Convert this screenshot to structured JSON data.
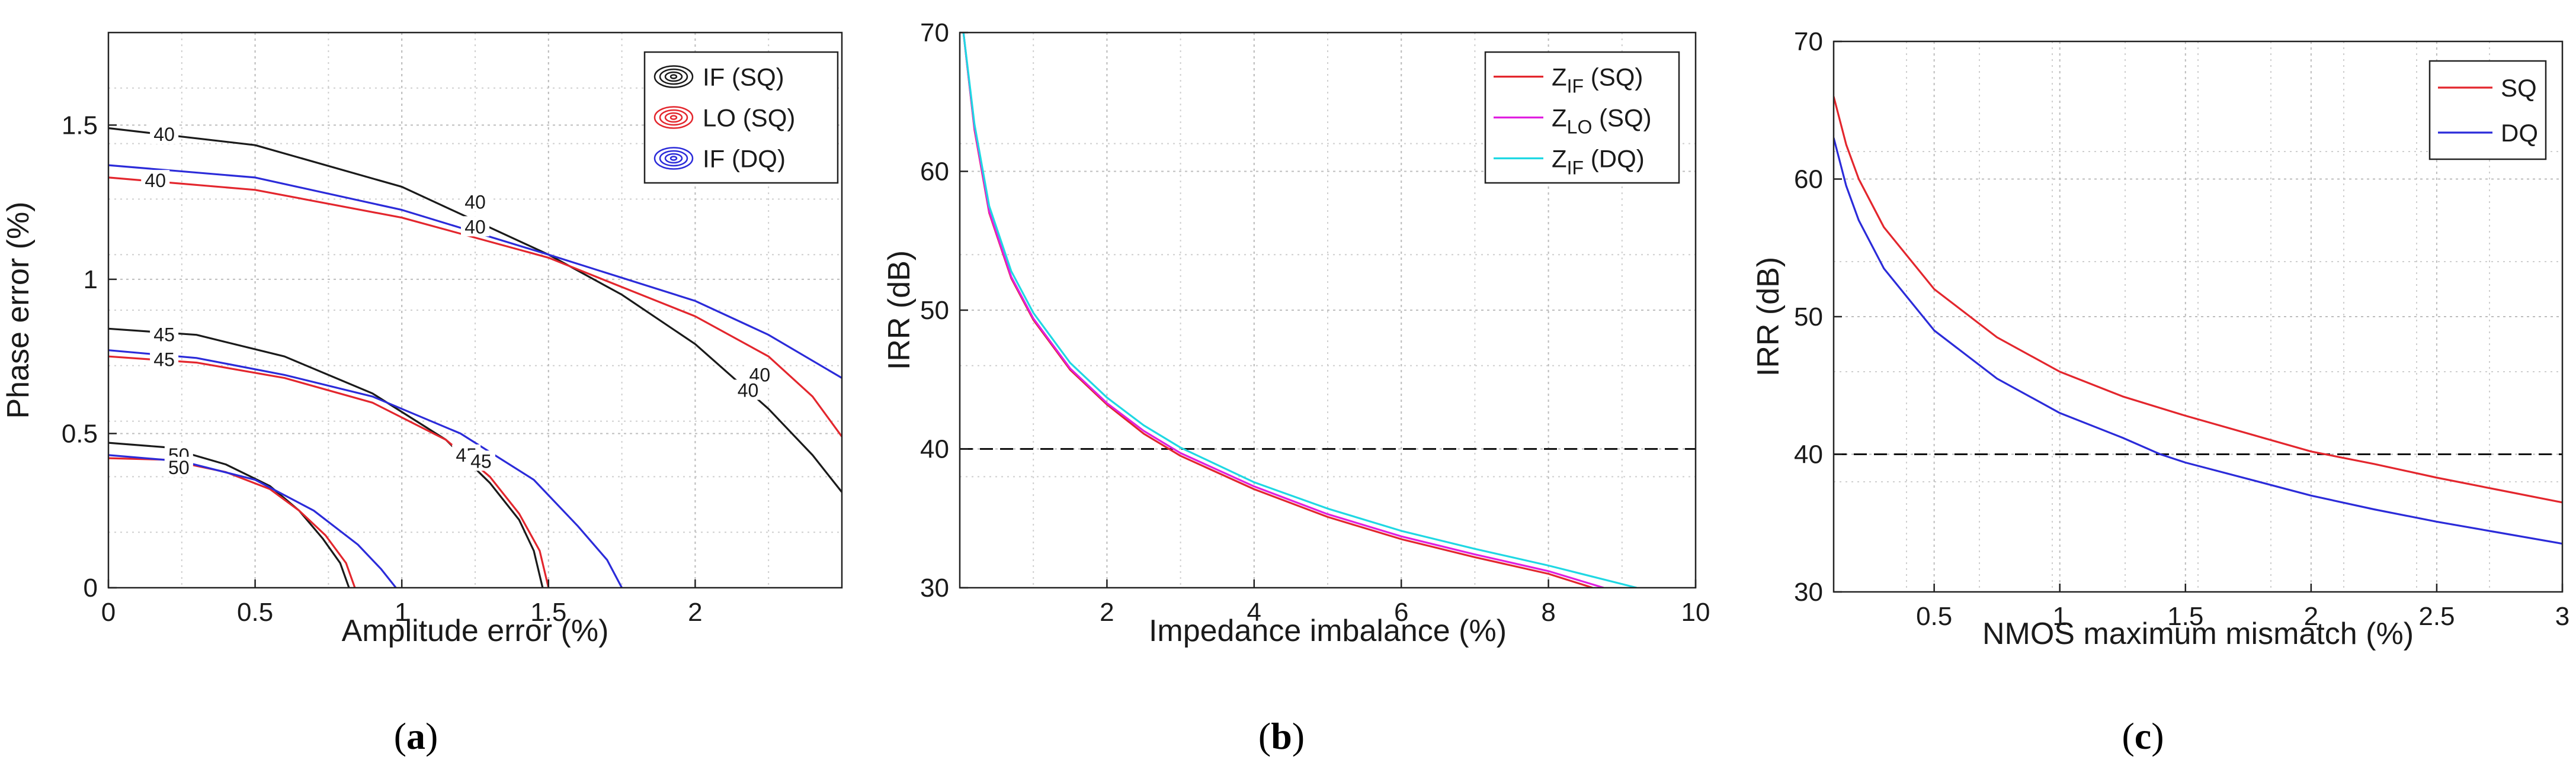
{
  "chart_data": [
    {
      "type": "contour",
      "panel_label": "a",
      "xlabel": "Amplitude error (%)",
      "ylabel": "Phase error (%)",
      "xlim": [
        0,
        2.5
      ],
      "ylim": [
        0,
        1.8
      ],
      "xticks": [
        0,
        0.5,
        1,
        1.5,
        2
      ],
      "xtick_labels": [
        "0",
        "0.5",
        "1",
        "1.5",
        "2"
      ],
      "yticks": [
        0,
        0.5,
        1,
        1.5
      ],
      "ytick_labels": [
        "0",
        "0.5",
        "1",
        "1.5"
      ],
      "legend": {
        "position": "top-right",
        "entries": [
          "IF (SQ)",
          "LO (SQ)",
          "IF (DQ)"
        ]
      },
      "contour_levels": [
        "40",
        "45",
        "50"
      ],
      "series": [
        {
          "name": "IF (SQ)",
          "color": "#1a1a1a",
          "contours": [
            {
              "level": "40",
              "points": [
                [
                  0,
                  1.49
                ],
                [
                  0.5,
                  1.435
                ],
                [
                  1,
                  1.3
                ],
                [
                  1.5,
                  1.08
                ],
                [
                  1.75,
                  0.95
                ],
                [
                  2,
                  0.79
                ],
                [
                  2.25,
                  0.58
                ],
                [
                  2.4,
                  0.43
                ],
                [
                  2.5,
                  0.31
                ]
              ]
            },
            {
              "level": "45",
              "points": [
                [
                  0,
                  0.84
                ],
                [
                  0.3,
                  0.82
                ],
                [
                  0.6,
                  0.75
                ],
                [
                  0.9,
                  0.63
                ],
                [
                  1.15,
                  0.48
                ],
                [
                  1.3,
                  0.34
                ],
                [
                  1.4,
                  0.22
                ],
                [
                  1.45,
                  0.12
                ],
                [
                  1.48,
                  0
                ]
              ]
            },
            {
              "level": "50",
              "points": [
                [
                  0,
                  0.47
                ],
                [
                  0.2,
                  0.455
                ],
                [
                  0.4,
                  0.4
                ],
                [
                  0.55,
                  0.33
                ],
                [
                  0.65,
                  0.25
                ],
                [
                  0.73,
                  0.16
                ],
                [
                  0.79,
                  0.08
                ],
                [
                  0.82,
                  0
                ]
              ]
            }
          ]
        },
        {
          "name": "LO (SQ)",
          "color": "#e3262d",
          "contours": [
            {
              "level": "40",
              "points": [
                [
                  0,
                  1.33
                ],
                [
                  0.5,
                  1.29
                ],
                [
                  1,
                  1.2
                ],
                [
                  1.5,
                  1.07
                ],
                [
                  2,
                  0.88
                ],
                [
                  2.25,
                  0.75
                ],
                [
                  2.4,
                  0.62
                ],
                [
                  2.5,
                  0.49
                ]
              ]
            },
            {
              "level": "45",
              "points": [
                [
                  0,
                  0.75
                ],
                [
                  0.3,
                  0.73
                ],
                [
                  0.6,
                  0.68
                ],
                [
                  0.9,
                  0.6
                ],
                [
                  1.15,
                  0.48
                ],
                [
                  1.3,
                  0.36
                ],
                [
                  1.4,
                  0.24
                ],
                [
                  1.47,
                  0.12
                ],
                [
                  1.5,
                  0
                ]
              ]
            },
            {
              "level": "50",
              "points": [
                [
                  0,
                  0.42
                ],
                [
                  0.2,
                  0.415
                ],
                [
                  0.4,
                  0.375
                ],
                [
                  0.55,
                  0.32
                ],
                [
                  0.65,
                  0.25
                ],
                [
                  0.74,
                  0.17
                ],
                [
                  0.81,
                  0.08
                ],
                [
                  0.84,
                  0
                ]
              ]
            }
          ]
        },
        {
          "name": "IF (DQ)",
          "color": "#2b2bd9",
          "contours": [
            {
              "level": "40",
              "points": [
                [
                  0,
                  1.37
                ],
                [
                  0.5,
                  1.33
                ],
                [
                  1,
                  1.225
                ],
                [
                  1.5,
                  1.08
                ],
                [
                  2,
                  0.93
                ],
                [
                  2.25,
                  0.82
                ],
                [
                  2.5,
                  0.68
                ]
              ]
            },
            {
              "level": "45",
              "points": [
                [
                  0,
                  0.77
                ],
                [
                  0.3,
                  0.745
                ],
                [
                  0.6,
                  0.69
                ],
                [
                  0.9,
                  0.62
                ],
                [
                  1.2,
                  0.5
                ],
                [
                  1.45,
                  0.35
                ],
                [
                  1.6,
                  0.2
                ],
                [
                  1.7,
                  0.09
                ],
                [
                  1.75,
                  0
                ]
              ]
            },
            {
              "level": "50",
              "points": [
                [
                  0,
                  0.43
                ],
                [
                  0.25,
                  0.41
                ],
                [
                  0.5,
                  0.35
                ],
                [
                  0.7,
                  0.25
                ],
                [
                  0.85,
                  0.14
                ],
                [
                  0.93,
                  0.06
                ],
                [
                  0.98,
                  0
                ]
              ]
            }
          ]
        }
      ],
      "contour_labels": [
        {
          "text": "40",
          "x": 0.19,
          "y": 1.47,
          "series": "IF (SQ)"
        },
        {
          "text": "40",
          "x": 0.16,
          "y": 1.32,
          "series": "LO (SQ)"
        },
        {
          "text": "40",
          "x": 1.25,
          "y": 1.25,
          "series": "IF (SQ)"
        },
        {
          "text": "40",
          "x": 1.25,
          "y": 1.17,
          "series": "IF (DQ)"
        },
        {
          "text": "40",
          "x": 2.22,
          "y": 0.69,
          "series": "LO (SQ)"
        },
        {
          "text": "40",
          "x": 2.18,
          "y": 0.64,
          "series": "IF (SQ)"
        },
        {
          "text": "45",
          "x": 0.19,
          "y": 0.82,
          "series": "IF (SQ)"
        },
        {
          "text": "45",
          "x": 0.19,
          "y": 0.74,
          "series": "IF (DQ)"
        },
        {
          "text": "45",
          "x": 1.22,
          "y": 0.43,
          "series": "IF (SQ)"
        },
        {
          "text": "45",
          "x": 1.27,
          "y": 0.41,
          "series": "IF (DQ)"
        },
        {
          "text": "50",
          "x": 0.24,
          "y": 0.43,
          "series": "IF (SQ)"
        },
        {
          "text": "50",
          "x": 0.24,
          "y": 0.39,
          "series": "IF (DQ)"
        }
      ]
    },
    {
      "type": "line",
      "panel_label": "b",
      "xlabel": "Impedance imbalance (%)",
      "ylabel": "IRR (dB)",
      "xlim": [
        0,
        10
      ],
      "ylim": [
        30,
        70
      ],
      "xticks": [
        2,
        4,
        6,
        8,
        10
      ],
      "xtick_labels": [
        "2",
        "4",
        "6",
        "8",
        "10"
      ],
      "yticks": [
        30,
        40,
        50,
        60,
        70
      ],
      "ytick_labels": [
        "30",
        "40",
        "50",
        "60",
        "70"
      ],
      "reference_line": {
        "y": 40,
        "style": "dashed"
      },
      "legend": {
        "position": "top-right"
      },
      "series": [
        {
          "name": "Z_IF (SQ)",
          "legend_main": "Z",
          "legend_sub": "IF",
          "legend_suffix": " (SQ)",
          "color": "#e3262d",
          "points": [
            [
              0.05,
              70
            ],
            [
              0.2,
              63
            ],
            [
              0.4,
              57
            ],
            [
              0.7,
              52.3
            ],
            [
              1,
              49.3
            ],
            [
              1.5,
              45.7
            ],
            [
              2,
              43.2
            ],
            [
              2.5,
              41.1
            ],
            [
              3,
              39.5
            ],
            [
              4,
              37.1
            ],
            [
              5,
              35.1
            ],
            [
              6,
              33.5
            ],
            [
              7,
              32.2
            ],
            [
              8,
              31
            ],
            [
              8.6,
              30
            ]
          ]
        },
        {
          "name": "Z_LO (SQ)",
          "legend_main": "Z",
          "legend_sub": "LO",
          "legend_suffix": " (SQ)",
          "color": "#e01fe0",
          "points": [
            [
              0.05,
              70
            ],
            [
              0.2,
              63.1
            ],
            [
              0.4,
              57.1
            ],
            [
              0.7,
              52.4
            ],
            [
              1,
              49.4
            ],
            [
              1.5,
              45.8
            ],
            [
              2,
              43.3
            ],
            [
              2.5,
              41.3
            ],
            [
              3,
              39.7
            ],
            [
              4,
              37.3
            ],
            [
              5,
              35.3
            ],
            [
              6,
              33.7
            ],
            [
              7,
              32.4
            ],
            [
              8,
              31.2
            ],
            [
              8.75,
              30
            ]
          ]
        },
        {
          "name": "Z_IF (DQ)",
          "legend_main": "Z",
          "legend_sub": "IF",
          "legend_suffix": " (DQ)",
          "color": "#1fd8e3",
          "points": [
            [
              0.05,
              70
            ],
            [
              0.2,
              63.4
            ],
            [
              0.4,
              57.5
            ],
            [
              0.7,
              52.8
            ],
            [
              1,
              49.8
            ],
            [
              1.5,
              46.2
            ],
            [
              2,
              43.7
            ],
            [
              2.5,
              41.7
            ],
            [
              3,
              40.1
            ],
            [
              4,
              37.6
            ],
            [
              5,
              35.7
            ],
            [
              6,
              34.1
            ],
            [
              7,
              32.8
            ],
            [
              8,
              31.6
            ],
            [
              9.2,
              30
            ]
          ]
        }
      ]
    },
    {
      "type": "line",
      "panel_label": "c",
      "xlabel": "NMOS maximum mismatch (%)",
      "ylabel": "IRR (dB)",
      "xlim": [
        0.1,
        3
      ],
      "ylim": [
        30,
        70
      ],
      "xticks": [
        0.5,
        1,
        1.5,
        2,
        2.5,
        3
      ],
      "xtick_labels": [
        "0.5",
        "1",
        "1.5",
        "2",
        "2.5",
        "3"
      ],
      "yticks": [
        30,
        40,
        50,
        60,
        70
      ],
      "ytick_labels": [
        "30",
        "40",
        "50",
        "60",
        "70"
      ],
      "reference_line": {
        "y": 40,
        "style": "dashed"
      },
      "legend": {
        "position": "top-right",
        "entries": [
          "SQ",
          "DQ"
        ]
      },
      "series": [
        {
          "name": "SQ",
          "color": "#e3262d",
          "points": [
            [
              0.1,
              66
            ],
            [
              0.15,
              62.5
            ],
            [
              0.2,
              60
            ],
            [
              0.3,
              56.5
            ],
            [
              0.5,
              52
            ],
            [
              0.75,
              48.5
            ],
            [
              1,
              46
            ],
            [
              1.25,
              44.2
            ],
            [
              1.5,
              42.8
            ],
            [
              1.75,
              41.5
            ],
            [
              2,
              40.2
            ],
            [
              2.25,
              39.3
            ],
            [
              2.5,
              38.3
            ],
            [
              2.75,
              37.4
            ],
            [
              3,
              36.5
            ]
          ]
        },
        {
          "name": "DQ",
          "color": "#2b2bd9",
          "points": [
            [
              0.1,
              63
            ],
            [
              0.15,
              59.5
            ],
            [
              0.2,
              57
            ],
            [
              0.3,
              53.5
            ],
            [
              0.5,
              49
            ],
            [
              0.75,
              45.5
            ],
            [
              1,
              43
            ],
            [
              1.25,
              41.2
            ],
            [
              1.4,
              40
            ],
            [
              1.5,
              39.4
            ],
            [
              1.75,
              38.2
            ],
            [
              2,
              37
            ],
            [
              2.25,
              36
            ],
            [
              2.5,
              35.1
            ],
            [
              2.75,
              34.3
            ],
            [
              3,
              33.5
            ]
          ]
        }
      ]
    }
  ]
}
